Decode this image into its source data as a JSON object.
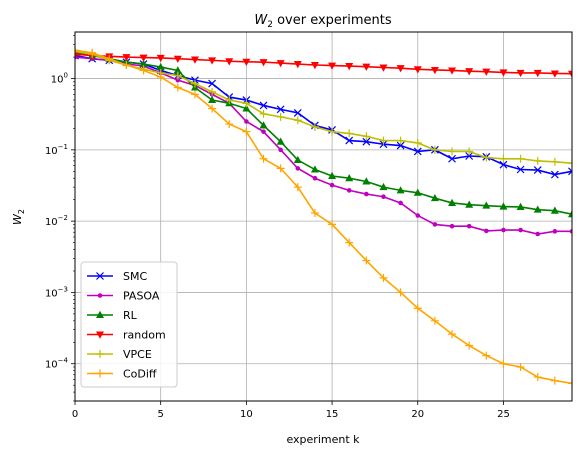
{
  "chart_data": {
    "type": "line",
    "title_main": "W",
    "title_sub": "2",
    "title_rest": " over experiments",
    "xlabel": "experiment k",
    "ylabel_main": "W",
    "ylabel_sub": "2",
    "xlim": [
      0,
      29
    ],
    "ylim": [
      3e-05,
      4.5
    ],
    "yscale": "log",
    "grid": true,
    "legend_position": "lower-left",
    "x_ticks": [
      0,
      5,
      10,
      15,
      20,
      25
    ],
    "x_tick_labels": [
      "0",
      "5",
      "10",
      "15",
      "20",
      "25"
    ],
    "y_ticks": [
      0.0001,
      0.001,
      0.01,
      0.1,
      1
    ],
    "y_tick_labels": [
      {
        "base": "10",
        "exp": "−4"
      },
      {
        "base": "10",
        "exp": "−3"
      },
      {
        "base": "10",
        "exp": "−2"
      },
      {
        "base": "10",
        "exp": "−1"
      },
      {
        "base": "10",
        "exp": "0"
      }
    ],
    "x": [
      0,
      1,
      2,
      3,
      4,
      5,
      6,
      7,
      8,
      9,
      10,
      11,
      12,
      13,
      14,
      15,
      16,
      17,
      18,
      19,
      20,
      21,
      22,
      23,
      24,
      25,
      26,
      27,
      28,
      29
    ],
    "series": [
      {
        "name": "SMC",
        "color": "#0000ff",
        "marker": "x",
        "values": [
          2.1,
          1.9,
          1.8,
          1.7,
          1.6,
          1.3,
          1.1,
          0.95,
          0.85,
          0.55,
          0.5,
          0.42,
          0.37,
          0.33,
          0.22,
          0.19,
          0.135,
          0.13,
          0.12,
          0.115,
          0.095,
          0.1,
          0.075,
          0.082,
          0.08,
          0.062,
          0.053,
          0.052,
          0.045,
          0.05
        ]
      },
      {
        "name": "PASOA",
        "color": "#bf00bf",
        "marker": "dot",
        "values": [
          2.0,
          1.9,
          1.8,
          1.6,
          1.5,
          1.2,
          0.95,
          0.8,
          0.6,
          0.45,
          0.25,
          0.18,
          0.1,
          0.055,
          0.04,
          0.032,
          0.027,
          0.024,
          0.022,
          0.018,
          0.012,
          0.009,
          0.0085,
          0.0085,
          0.0073,
          0.0075,
          0.0075,
          0.0066,
          0.0072,
          0.0072
        ]
      },
      {
        "name": "RL",
        "color": "#008000",
        "marker": "triangle-up",
        "values": [
          2.3,
          2.1,
          1.9,
          1.7,
          1.6,
          1.45,
          1.3,
          0.75,
          0.5,
          0.45,
          0.38,
          0.22,
          0.13,
          0.072,
          0.053,
          0.043,
          0.04,
          0.036,
          0.03,
          0.027,
          0.025,
          0.021,
          0.018,
          0.017,
          0.0165,
          0.016,
          0.0158,
          0.0145,
          0.014,
          0.0125
        ]
      },
      {
        "name": "random",
        "color": "#ff0000",
        "marker": "triangle-down",
        "values": [
          2.2,
          2.1,
          2.05,
          2.0,
          1.97,
          1.95,
          1.9,
          1.85,
          1.8,
          1.75,
          1.72,
          1.7,
          1.65,
          1.6,
          1.55,
          1.52,
          1.5,
          1.47,
          1.43,
          1.4,
          1.35,
          1.32,
          1.3,
          1.27,
          1.25,
          1.22,
          1.2,
          1.2,
          1.18,
          1.17
        ]
      },
      {
        "name": "VPCE",
        "color": "#bfbf00",
        "marker": "plus",
        "values": [
          2.4,
          2.2,
          1.8,
          1.55,
          1.35,
          1.2,
          1.1,
          0.85,
          0.65,
          0.5,
          0.45,
          0.32,
          0.29,
          0.26,
          0.21,
          0.18,
          0.17,
          0.155,
          0.135,
          0.135,
          0.125,
          0.1,
          0.095,
          0.095,
          0.078,
          0.075,
          0.075,
          0.07,
          0.068,
          0.065
        ]
      },
      {
        "name": "CoDiff",
        "color": "#ffa500",
        "marker": "plus",
        "values": [
          2.5,
          2.3,
          1.9,
          1.55,
          1.3,
          1.05,
          0.75,
          0.6,
          0.38,
          0.23,
          0.18,
          0.075,
          0.055,
          0.03,
          0.013,
          0.009,
          0.005,
          0.0028,
          0.0016,
          0.001,
          0.0006,
          0.0004,
          0.00026,
          0.00018,
          0.00013,
          0.0001,
          9e-05,
          6.5e-05,
          5.8e-05,
          5.3e-05
        ]
      }
    ]
  }
}
